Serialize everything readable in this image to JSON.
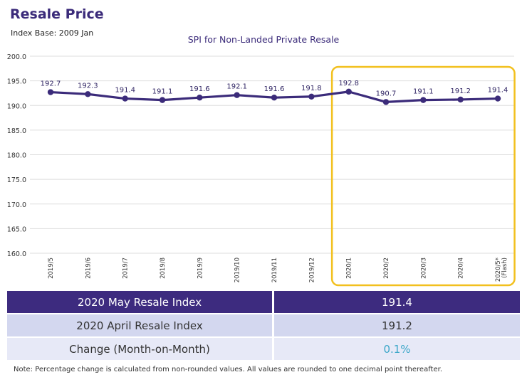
{
  "header": {
    "title": "Resale Price",
    "subtitle": "Index Base: 2009 Jan"
  },
  "chart_data": {
    "type": "line",
    "title": "SPI for Non-Landed Private Resale",
    "xlabel": "",
    "ylabel": "",
    "categories": [
      "2019/5",
      "2019/6",
      "2019/7",
      "2019/8",
      "2019/9",
      "2019/10",
      "2019/11",
      "2019/12",
      "2020/1",
      "2020/2",
      "2020/3",
      "2020/4",
      "2020/5* (Flash)"
    ],
    "values": [
      192.7,
      192.3,
      191.4,
      191.1,
      191.6,
      192.1,
      191.6,
      191.8,
      192.8,
      190.7,
      191.1,
      191.2,
      191.4
    ],
    "data_labels": [
      "192.7",
      "192.3",
      "191.4",
      "191.1",
      "191.6",
      "192.1",
      "191.6",
      "191.8",
      "192.8",
      "190.7",
      "191.1",
      "191.2",
      "191.4"
    ],
    "yticks": [
      "200.0",
      "195.0",
      "190.0",
      "185.0",
      "180.0",
      "175.0",
      "170.0",
      "165.0",
      "160.0"
    ],
    "ylim": [
      160,
      200
    ],
    "grid": true,
    "highlight_range": [
      "2020/1",
      "2020/5* (Flash)"
    ],
    "colors": {
      "line": "#3b2b7a",
      "grid": "#dedede",
      "highlight": "#f2c01e"
    }
  },
  "table": {
    "rows": [
      {
        "label": "2020 May Resale Index",
        "value": "191.4"
      },
      {
        "label": "2020 April Resale Index",
        "value": "191.2"
      },
      {
        "label": "Change (Month-on-Month)",
        "value": "0.1%"
      }
    ]
  },
  "note": "Note: Percentage change is calculated from non-rounded values.  All values are rounded to one decimal point thereafter."
}
